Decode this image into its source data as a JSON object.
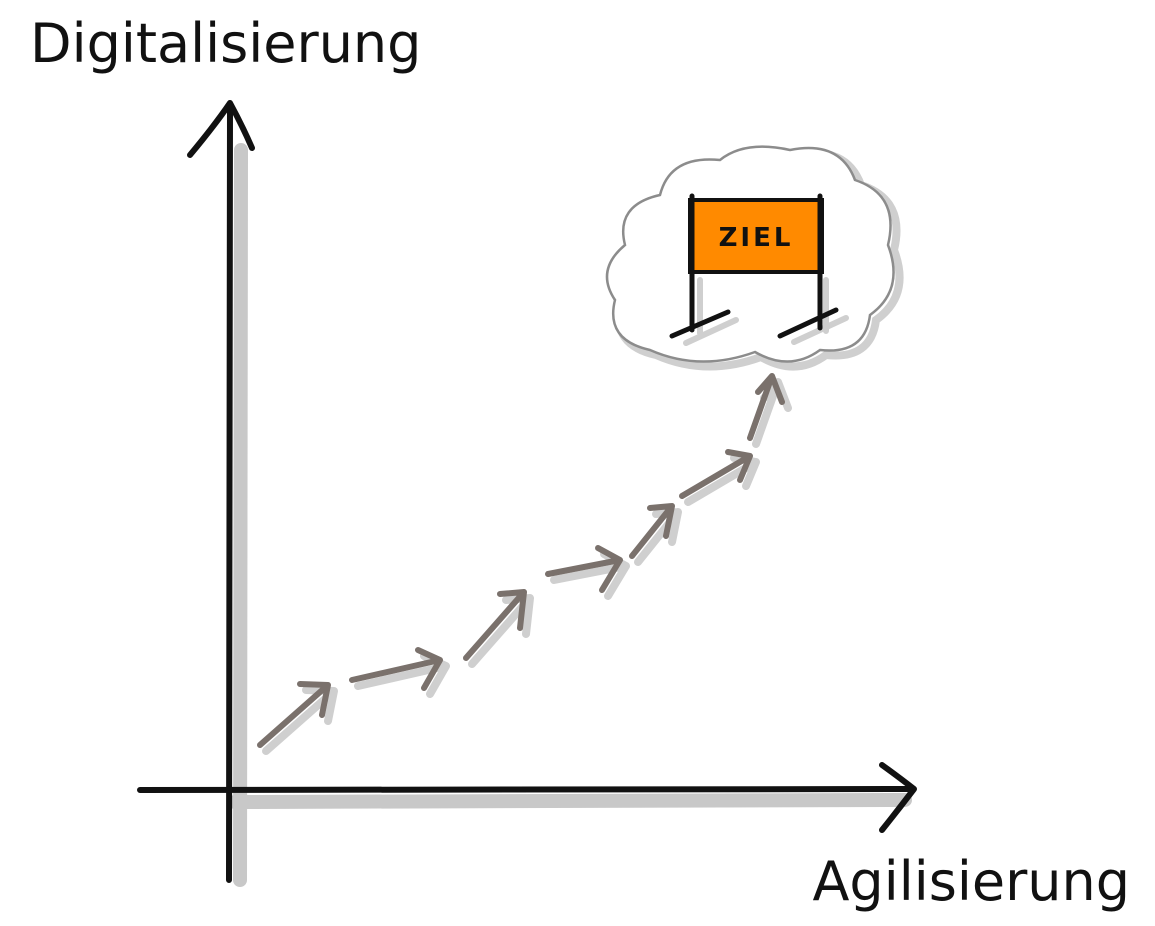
{
  "axes": {
    "y_label": "Digitalisierung",
    "x_label": "Agilisierung"
  },
  "goal": {
    "label": "ZIEL"
  }
}
